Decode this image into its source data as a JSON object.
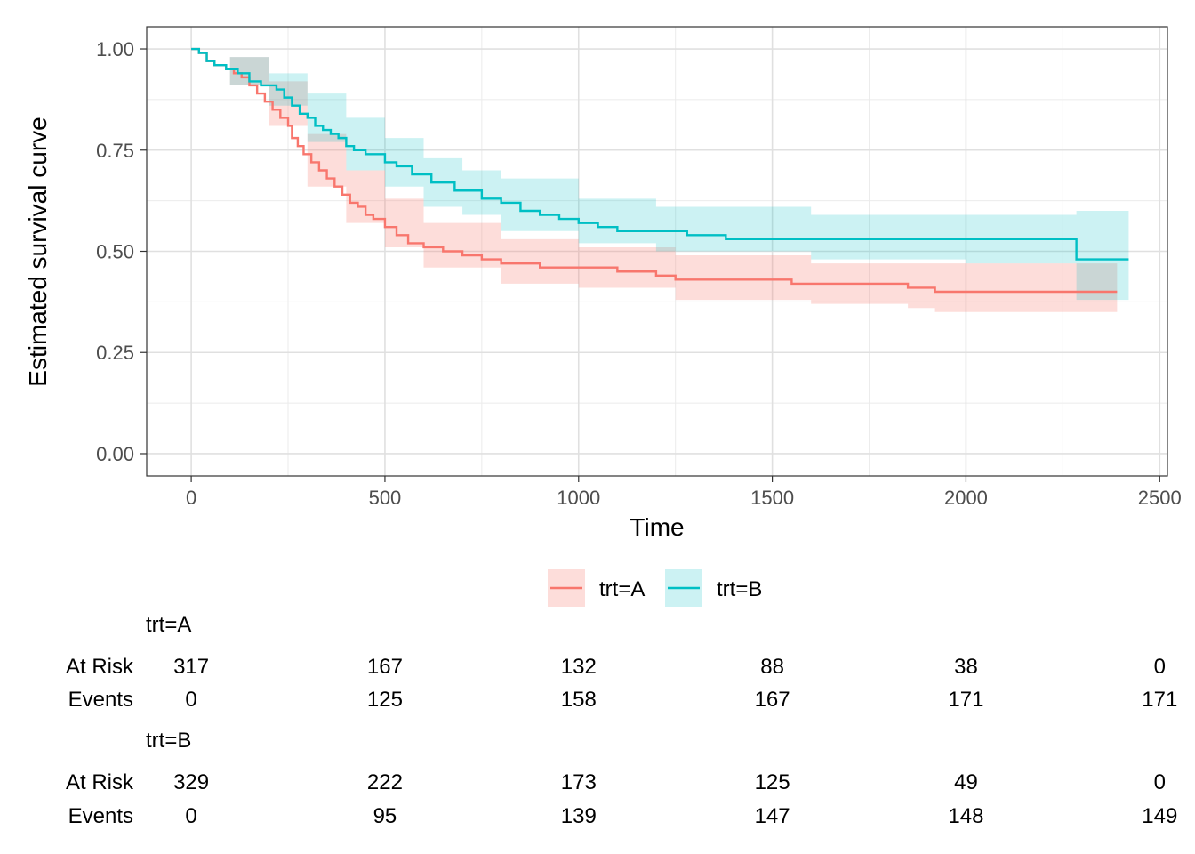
{
  "chart_data": {
    "type": "line",
    "xlabel": "Time",
    "ylabel": "Estimated survival curve",
    "xlim": [
      -115,
      2520
    ],
    "ylim": [
      -0.055,
      1.055
    ],
    "x_ticks": [
      0,
      500,
      1000,
      1500,
      2000,
      2500
    ],
    "x_tick_labels": [
      "0",
      "500",
      "1000",
      "1500",
      "2000",
      "2500"
    ],
    "y_ticks": [
      0,
      0.25,
      0.5,
      0.75,
      1.0
    ],
    "y_tick_labels": [
      "0.00",
      "0.25",
      "0.50",
      "0.75",
      "1.00"
    ],
    "grid": true,
    "legend_position": "bottom",
    "series": [
      {
        "name": "trt=A",
        "color": "#F8766D",
        "step": true,
        "points": [
          [
            0,
            1.0
          ],
          [
            20,
            0.99
          ],
          [
            40,
            0.97
          ],
          [
            60,
            0.96
          ],
          [
            90,
            0.95
          ],
          [
            110,
            0.94
          ],
          [
            130,
            0.93
          ],
          [
            150,
            0.91
          ],
          [
            170,
            0.89
          ],
          [
            190,
            0.87
          ],
          [
            210,
            0.85
          ],
          [
            230,
            0.83
          ],
          [
            250,
            0.81
          ],
          [
            260,
            0.78
          ],
          [
            275,
            0.76
          ],
          [
            290,
            0.74
          ],
          [
            310,
            0.72
          ],
          [
            330,
            0.7
          ],
          [
            350,
            0.68
          ],
          [
            370,
            0.66
          ],
          [
            390,
            0.64
          ],
          [
            410,
            0.62
          ],
          [
            430,
            0.61
          ],
          [
            450,
            0.59
          ],
          [
            470,
            0.58
          ],
          [
            500,
            0.56
          ],
          [
            530,
            0.54
          ],
          [
            560,
            0.52
          ],
          [
            600,
            0.51
          ],
          [
            650,
            0.5
          ],
          [
            700,
            0.49
          ],
          [
            750,
            0.48
          ],
          [
            800,
            0.47
          ],
          [
            850,
            0.47
          ],
          [
            900,
            0.46
          ],
          [
            1000,
            0.46
          ],
          [
            1100,
            0.45
          ],
          [
            1200,
            0.44
          ],
          [
            1250,
            0.43
          ],
          [
            1400,
            0.43
          ],
          [
            1550,
            0.42
          ],
          [
            1600,
            0.42
          ],
          [
            1800,
            0.42
          ],
          [
            1850,
            0.41
          ],
          [
            1920,
            0.4
          ],
          [
            2000,
            0.4
          ],
          [
            2200,
            0.4
          ],
          [
            2390,
            0.4
          ]
        ],
        "lower": [
          [
            0,
            1.0
          ],
          [
            100,
            0.91
          ],
          [
            200,
            0.81
          ],
          [
            300,
            0.66
          ],
          [
            400,
            0.57
          ],
          [
            500,
            0.51
          ],
          [
            600,
            0.46
          ],
          [
            800,
            0.42
          ],
          [
            1000,
            0.41
          ],
          [
            1250,
            0.38
          ],
          [
            1600,
            0.37
          ],
          [
            1850,
            0.36
          ],
          [
            1920,
            0.35
          ],
          [
            2390,
            0.35
          ]
        ],
        "upper": [
          [
            0,
            1.0
          ],
          [
            100,
            0.98
          ],
          [
            200,
            0.92
          ],
          [
            300,
            0.79
          ],
          [
            400,
            0.7
          ],
          [
            500,
            0.63
          ],
          [
            600,
            0.57
          ],
          [
            800,
            0.53
          ],
          [
            1000,
            0.51
          ],
          [
            1250,
            0.49
          ],
          [
            1600,
            0.47
          ],
          [
            1850,
            0.47
          ],
          [
            2390,
            0.47
          ]
        ]
      },
      {
        "name": "trt=B",
        "color": "#00BFC4",
        "step": true,
        "points": [
          [
            0,
            1.0
          ],
          [
            20,
            0.99
          ],
          [
            40,
            0.97
          ],
          [
            60,
            0.96
          ],
          [
            90,
            0.95
          ],
          [
            120,
            0.94
          ],
          [
            150,
            0.92
          ],
          [
            180,
            0.91
          ],
          [
            220,
            0.9
          ],
          [
            240,
            0.88
          ],
          [
            260,
            0.86
          ],
          [
            280,
            0.84
          ],
          [
            300,
            0.83
          ],
          [
            320,
            0.81
          ],
          [
            340,
            0.8
          ],
          [
            360,
            0.79
          ],
          [
            380,
            0.78
          ],
          [
            400,
            0.76
          ],
          [
            420,
            0.75
          ],
          [
            450,
            0.74
          ],
          [
            500,
            0.72
          ],
          [
            530,
            0.71
          ],
          [
            570,
            0.69
          ],
          [
            620,
            0.67
          ],
          [
            680,
            0.65
          ],
          [
            750,
            0.63
          ],
          [
            800,
            0.62
          ],
          [
            850,
            0.6
          ],
          [
            900,
            0.59
          ],
          [
            950,
            0.58
          ],
          [
            1000,
            0.57
          ],
          [
            1050,
            0.56
          ],
          [
            1100,
            0.55
          ],
          [
            1200,
            0.55
          ],
          [
            1280,
            0.54
          ],
          [
            1380,
            0.53
          ],
          [
            1500,
            0.53
          ],
          [
            1620,
            0.53
          ],
          [
            1700,
            0.53
          ],
          [
            2000,
            0.53
          ],
          [
            2280,
            0.53
          ],
          [
            2285,
            0.48
          ],
          [
            2420,
            0.48
          ]
        ],
        "lower": [
          [
            0,
            1.0
          ],
          [
            100,
            0.91
          ],
          [
            200,
            0.86
          ],
          [
            300,
            0.77
          ],
          [
            400,
            0.7
          ],
          [
            500,
            0.66
          ],
          [
            600,
            0.61
          ],
          [
            700,
            0.59
          ],
          [
            800,
            0.55
          ],
          [
            1000,
            0.52
          ],
          [
            1200,
            0.5
          ],
          [
            1600,
            0.48
          ],
          [
            2000,
            0.47
          ],
          [
            2280,
            0.47
          ],
          [
            2285,
            0.38
          ],
          [
            2420,
            0.38
          ]
        ],
        "upper": [
          [
            0,
            1.0
          ],
          [
            100,
            0.98
          ],
          [
            200,
            0.94
          ],
          [
            300,
            0.89
          ],
          [
            400,
            0.83
          ],
          [
            500,
            0.78
          ],
          [
            600,
            0.73
          ],
          [
            700,
            0.7
          ],
          [
            800,
            0.68
          ],
          [
            1000,
            0.63
          ],
          [
            1200,
            0.61
          ],
          [
            1600,
            0.59
          ],
          [
            2000,
            0.59
          ],
          [
            2280,
            0.59
          ],
          [
            2285,
            0.6
          ],
          [
            2420,
            0.6
          ]
        ]
      }
    ]
  },
  "legend": {
    "items": [
      {
        "label": "trt=A",
        "color": "#F8766D"
      },
      {
        "label": "trt=B",
        "color": "#00BFC4"
      }
    ]
  },
  "risk_table": {
    "row_labels": [
      "At Risk",
      "Events"
    ],
    "groups": [
      {
        "name": "trt=A",
        "at_risk": [
          "317",
          "167",
          "132",
          "88",
          "38",
          "0"
        ],
        "events": [
          "0",
          "125",
          "158",
          "167",
          "171",
          "171"
        ]
      },
      {
        "name": "trt=B",
        "at_risk": [
          "329",
          "222",
          "173",
          "125",
          "49",
          "0"
        ],
        "events": [
          "0",
          "95",
          "139",
          "147",
          "148",
          "149"
        ]
      }
    ]
  }
}
